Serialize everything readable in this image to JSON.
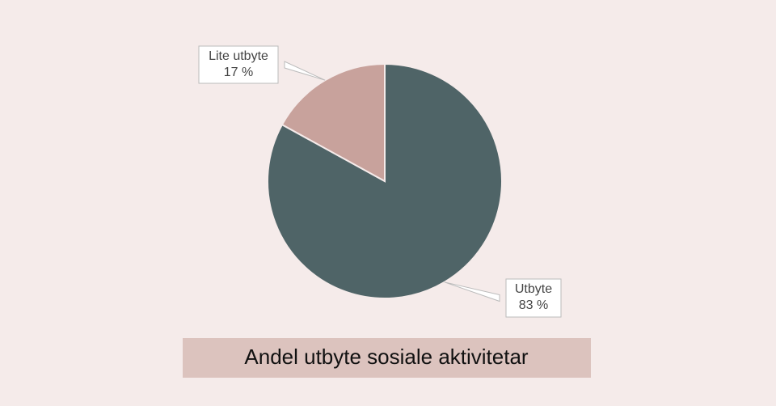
{
  "chart_data": {
    "type": "pie",
    "title": "Andel utbyte sosiale aktivitetar",
    "categories": [
      "Utbyte",
      "Lite utbyte"
    ],
    "values": [
      83,
      17
    ],
    "value_labels": [
      "83 %",
      "17 %"
    ],
    "colors": [
      "#4f6467",
      "#c8a29c"
    ]
  }
}
